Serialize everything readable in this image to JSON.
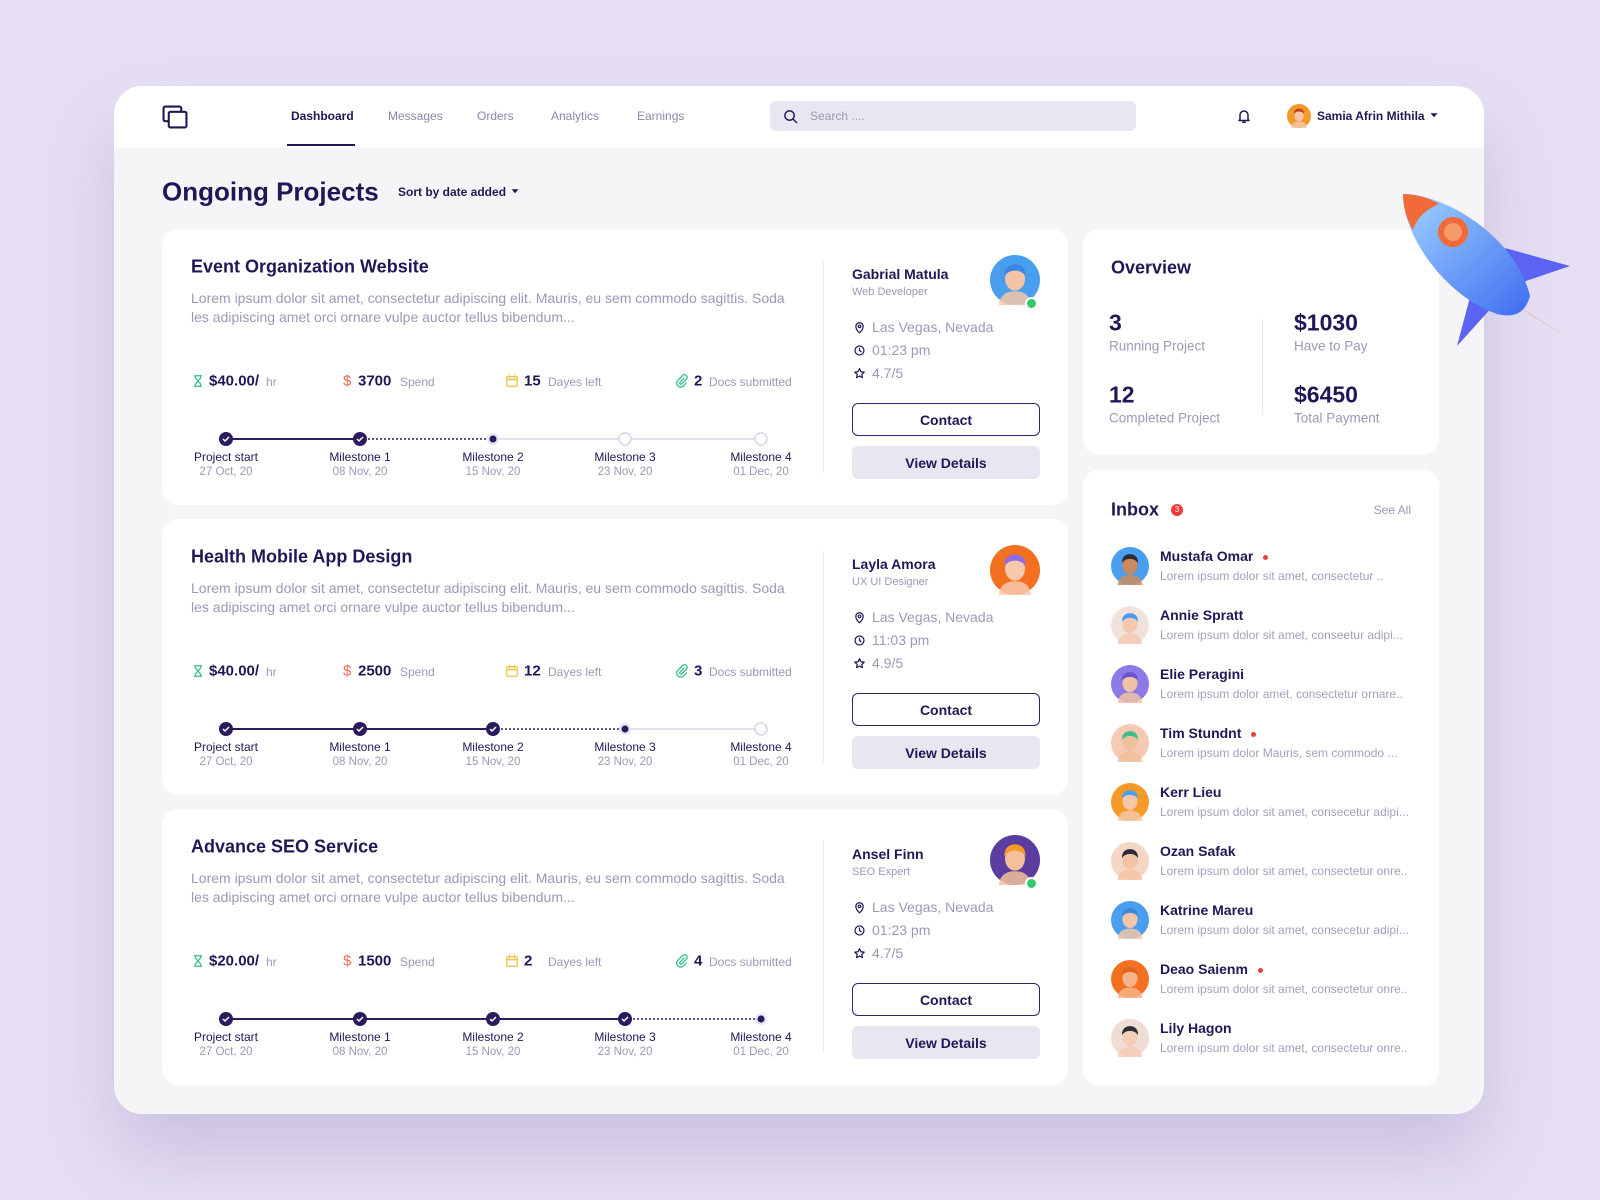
{
  "nav": {
    "items": [
      "Dashboard",
      "Messages",
      "Orders",
      "Analytics",
      "Earnings"
    ],
    "active": 0,
    "search_placeholder": "Search ....",
    "user_name": "Samia Afrin Mithila"
  },
  "page": {
    "title": "Ongoing Projects",
    "sort_label": "Sort by date added"
  },
  "projects": [
    {
      "title": "Event Organization Website",
      "description": "Lorem ipsum dolor sit amet, consectetur adipiscing elit. Mauris, eu sem commodo sagittis. Soda les adipiscing amet orci ornare vulpe auctor tellus bibendum...",
      "rate": "$40.00/",
      "rate_unit": "hr",
      "currency": "$",
      "spend": 3700,
      "spend_label": "Spend",
      "days_left": 15,
      "days_label": "Dayes left",
      "docs": 2,
      "docs_label": "Docs submitted",
      "milestones": [
        {
          "name": "Project start",
          "date": "27 Oct, 20"
        },
        {
          "name": "Milestone 1",
          "date": "08 Nov, 20"
        },
        {
          "name": "Milestone 2",
          "date": "15 Nov, 20"
        },
        {
          "name": "Milestone 3",
          "date": "23 Nov, 20"
        },
        {
          "name": "Milestone 4",
          "date": "01 Dec, 20"
        }
      ],
      "completed_milestones": 2,
      "contact": {
        "name": "Gabrial Matula",
        "role": "Web Developer",
        "location": "Las Vegas, Nevada",
        "time": "01:23 pm",
        "rating": "4.7/5",
        "online": true
      },
      "buttons": [
        "Contact",
        "View Details"
      ]
    },
    {
      "title": "Health Mobile App Design",
      "description": "Lorem ipsum dolor sit amet, consectetur adipiscing elit. Mauris, eu sem commodo sagittis. Soda les adipiscing amet orci ornare vulpe auctor tellus bibendum...",
      "rate": "$40.00/",
      "rate_unit": "hr",
      "currency": "$",
      "spend": 2500,
      "spend_label": "Spend",
      "days_left": 12,
      "days_label": "Dayes left",
      "docs": 3,
      "docs_label": "Docs submitted",
      "milestones": [
        {
          "name": "Project start",
          "date": "27 Oct, 20"
        },
        {
          "name": "Milestone 1",
          "date": "08 Nov, 20"
        },
        {
          "name": "Milestone 2",
          "date": "15 Nov, 20"
        },
        {
          "name": "Milestone 3",
          "date": "23 Nov, 20"
        },
        {
          "name": "Milestone 4",
          "date": "01 Dec, 20"
        }
      ],
      "completed_milestones": 3,
      "contact": {
        "name": "Layla Amora",
        "role": "UX UI Designer",
        "location": "Las Vegas, Nevada",
        "time": "11:03 pm",
        "rating": "4.9/5",
        "online": false
      },
      "buttons": [
        "Contact",
        "View Details"
      ]
    },
    {
      "title": "Advance SEO Service",
      "description": "Lorem ipsum dolor sit amet, consectetur adipiscing elit. Mauris, eu sem commodo sagittis. Soda les adipiscing amet orci ornare vulpe auctor tellus bibendum...",
      "rate": "$20.00/",
      "rate_unit": "hr",
      "currency": "$",
      "spend": 1500,
      "spend_label": "Spend",
      "days_left": 2,
      "days_label": "Dayes left",
      "docs": 4,
      "docs_label": "Docs submitted",
      "milestones": [
        {
          "name": "Project start",
          "date": "27 Oct, 20"
        },
        {
          "name": "Milestone 1",
          "date": "08 Nov, 20"
        },
        {
          "name": "Milestone 2",
          "date": "15 Nov, 20"
        },
        {
          "name": "Milestone 3",
          "date": "23 Nov, 20"
        },
        {
          "name": "Milestone 4",
          "date": "01 Dec, 20"
        }
      ],
      "completed_milestones": 4,
      "contact": {
        "name": "Ansel Finn",
        "role": "SEO Expert",
        "location": "Las Vegas, Nevada",
        "time": "01:23 pm",
        "rating": "4.7/5",
        "online": true
      },
      "buttons": [
        "Contact",
        "View Details"
      ]
    }
  ],
  "overview": {
    "title": "Overview",
    "stats": [
      {
        "value": 3,
        "label": "Running Project"
      },
      {
        "value": "$1030",
        "label": "Have to Pay"
      },
      {
        "value": 12,
        "label": "Completed Project"
      },
      {
        "value": "$6450",
        "label": "Total Payment"
      }
    ]
  },
  "inbox": {
    "title": "Inbox",
    "unread_count": 3,
    "see_all": "See All",
    "messages": [
      {
        "name": "Mustafa Omar",
        "preview": "Lorem ipsum dolor sit amet, consectetur ..",
        "unread": true
      },
      {
        "name": "Annie Spratt",
        "preview": "Lorem ipsum dolor sit amet, conseetur adipi...",
        "unread": false
      },
      {
        "name": "Elie Peragini",
        "preview": "Lorem ipsum dolor amet, consectetur ornare..",
        "unread": false
      },
      {
        "name": "Tim Stundnt",
        "preview": "Lorem ipsum dolor Mauris, sem commodo ...",
        "unread": true
      },
      {
        "name": "Kerr Lieu",
        "preview": "Lorem ipsum dolor sit amet, consecetur adipi...",
        "unread": false
      },
      {
        "name": "Ozan Safak",
        "preview": "Lorem ipsum dolor sit amet, consectetur onre..",
        "unread": false
      },
      {
        "name": "Katrine Mareu",
        "preview": "Lorem ipsum dolor sit amet, consecetur adipi...",
        "unread": false
      },
      {
        "name": "Deao Saienm",
        "preview": "Lorem ipsum dolor sit amet, consectetur onre..",
        "unread": true
      },
      {
        "name": "Lily Hagon",
        "preview": "Lorem ipsum dolor sit amet, consectetur onre..",
        "unread": false
      }
    ]
  }
}
